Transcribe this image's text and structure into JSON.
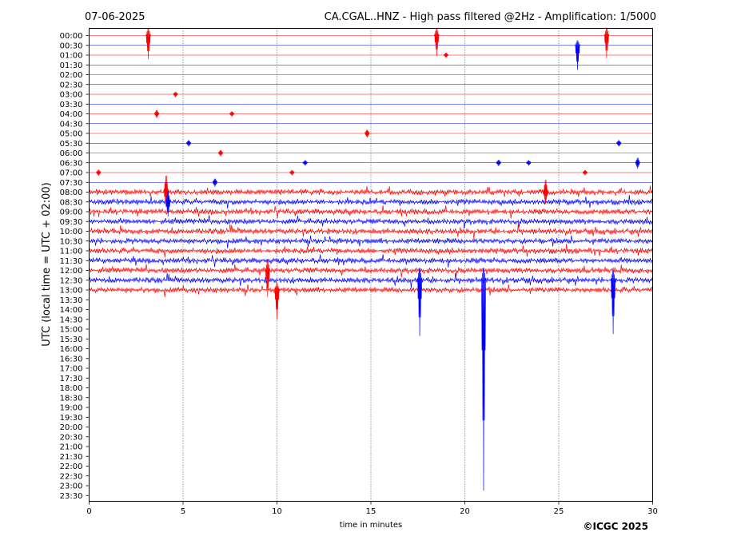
{
  "header": {
    "date": "07-06-2025",
    "station_title": "CA.CGAL..HNZ - High pass filtered @2Hz - Amplification: 1/5000"
  },
  "footer": {
    "copyright": "©ICGC 2025"
  },
  "chart_data": {
    "type": "line",
    "title": "CA.CGAL..HNZ - High pass filtered @2Hz - Amplification: 1/5000",
    "xlabel": "time in minutes",
    "ylabel": "UTC (local time = UTC + 02:00)",
    "xlim": [
      0,
      30
    ],
    "x_ticks": [
      "0",
      "5",
      "10",
      "15",
      "20",
      "25",
      "30"
    ],
    "y_ticks": [
      "00:00",
      "00:30",
      "01:00",
      "01:30",
      "02:00",
      "02:30",
      "03:00",
      "03:30",
      "04:00",
      "04:30",
      "05:00",
      "05:30",
      "06:00",
      "06:30",
      "07:00",
      "07:30",
      "08:00",
      "08:30",
      "09:00",
      "09:30",
      "10:00",
      "10:30",
      "11:00",
      "11:30",
      "12:00",
      "12:30",
      "13:00",
      "13:30",
      "14:00",
      "14:30",
      "15:00",
      "15:30",
      "16:00",
      "16:30",
      "17:00",
      "17:30",
      "18:00",
      "18:30",
      "19:00",
      "19:30",
      "20:00",
      "20:30",
      "21:00",
      "21:30",
      "22:00",
      "22:30",
      "23:00",
      "23:30"
    ],
    "grid": "vertical dotted lines at every 5 minutes",
    "trace_colors": [
      "#ff0000",
      "#0000ff"
    ],
    "recorded_rows": 27,
    "noisy_rows": [
      "08:00",
      "08:30",
      "09:00",
      "09:30",
      "10:00",
      "10:30",
      "11:00",
      "11:30",
      "12:00",
      "12:30",
      "13:00"
    ],
    "events": [
      {
        "row": "00:00",
        "minute": 3.15,
        "amp": 0.92,
        "down": 2.4
      },
      {
        "row": "00:00",
        "minute": 18.5,
        "amp": 0.95,
        "down": 2.1
      },
      {
        "row": "00:00",
        "minute": 27.55,
        "amp": 0.95,
        "down": 2.3
      },
      {
        "row": "00:30",
        "minute": 26.0,
        "amp": 0.6,
        "down": 2.5
      },
      {
        "row": "01:00",
        "minute": 19.0,
        "amp": 0.3,
        "down": 0.3
      },
      {
        "row": "03:00",
        "minute": 4.6,
        "amp": 0.3,
        "down": 0.3
      },
      {
        "row": "04:00",
        "minute": 3.6,
        "amp": 0.45,
        "down": 0.45
      },
      {
        "row": "04:00",
        "minute": 7.6,
        "amp": 0.3,
        "down": 0.3
      },
      {
        "row": "05:00",
        "minute": 14.8,
        "amp": 0.45,
        "down": 0.45
      },
      {
        "row": "05:30",
        "minute": 5.3,
        "amp": 0.35,
        "down": 0.35
      },
      {
        "row": "05:30",
        "minute": 28.2,
        "amp": 0.35,
        "down": 0.35
      },
      {
        "row": "06:00",
        "minute": 7.0,
        "amp": 0.35,
        "down": 0.35
      },
      {
        "row": "06:30",
        "minute": 11.5,
        "amp": 0.3,
        "down": 0.3
      },
      {
        "row": "06:30",
        "minute": 21.8,
        "amp": 0.35,
        "down": 0.35
      },
      {
        "row": "06:30",
        "minute": 23.4,
        "amp": 0.3,
        "down": 0.3
      },
      {
        "row": "06:30",
        "minute": 29.2,
        "amp": 0.6,
        "down": 0.6
      },
      {
        "row": "07:00",
        "minute": 0.5,
        "amp": 0.35,
        "down": 0.35
      },
      {
        "row": "07:00",
        "minute": 10.8,
        "amp": 0.3,
        "down": 0.3
      },
      {
        "row": "07:00",
        "minute": 26.4,
        "amp": 0.3,
        "down": 0.3
      },
      {
        "row": "07:30",
        "minute": 6.7,
        "amp": 0.45,
        "down": 0.45
      },
      {
        "row": "08:00",
        "minute": 4.1,
        "amp": 2.0,
        "down": 1.5
      },
      {
        "row": "08:00",
        "minute": 24.3,
        "amp": 1.5,
        "down": 1.2
      },
      {
        "row": "08:30",
        "minute": 4.2,
        "amp": 1.3,
        "down": 1.5
      },
      {
        "row": "12:00",
        "minute": 9.5,
        "amp": 1.2,
        "down": 2.7
      },
      {
        "row": "12:30",
        "minute": 17.6,
        "amp": 1.5,
        "down": 5.7
      },
      {
        "row": "12:30",
        "minute": 21.0,
        "amp": 1.5,
        "down": 21.5
      },
      {
        "row": "12:30",
        "minute": 27.9,
        "amp": 1.2,
        "down": 5.5
      },
      {
        "row": "13:00",
        "minute": 10.0,
        "amp": 0.8,
        "down": 3.0
      }
    ]
  }
}
